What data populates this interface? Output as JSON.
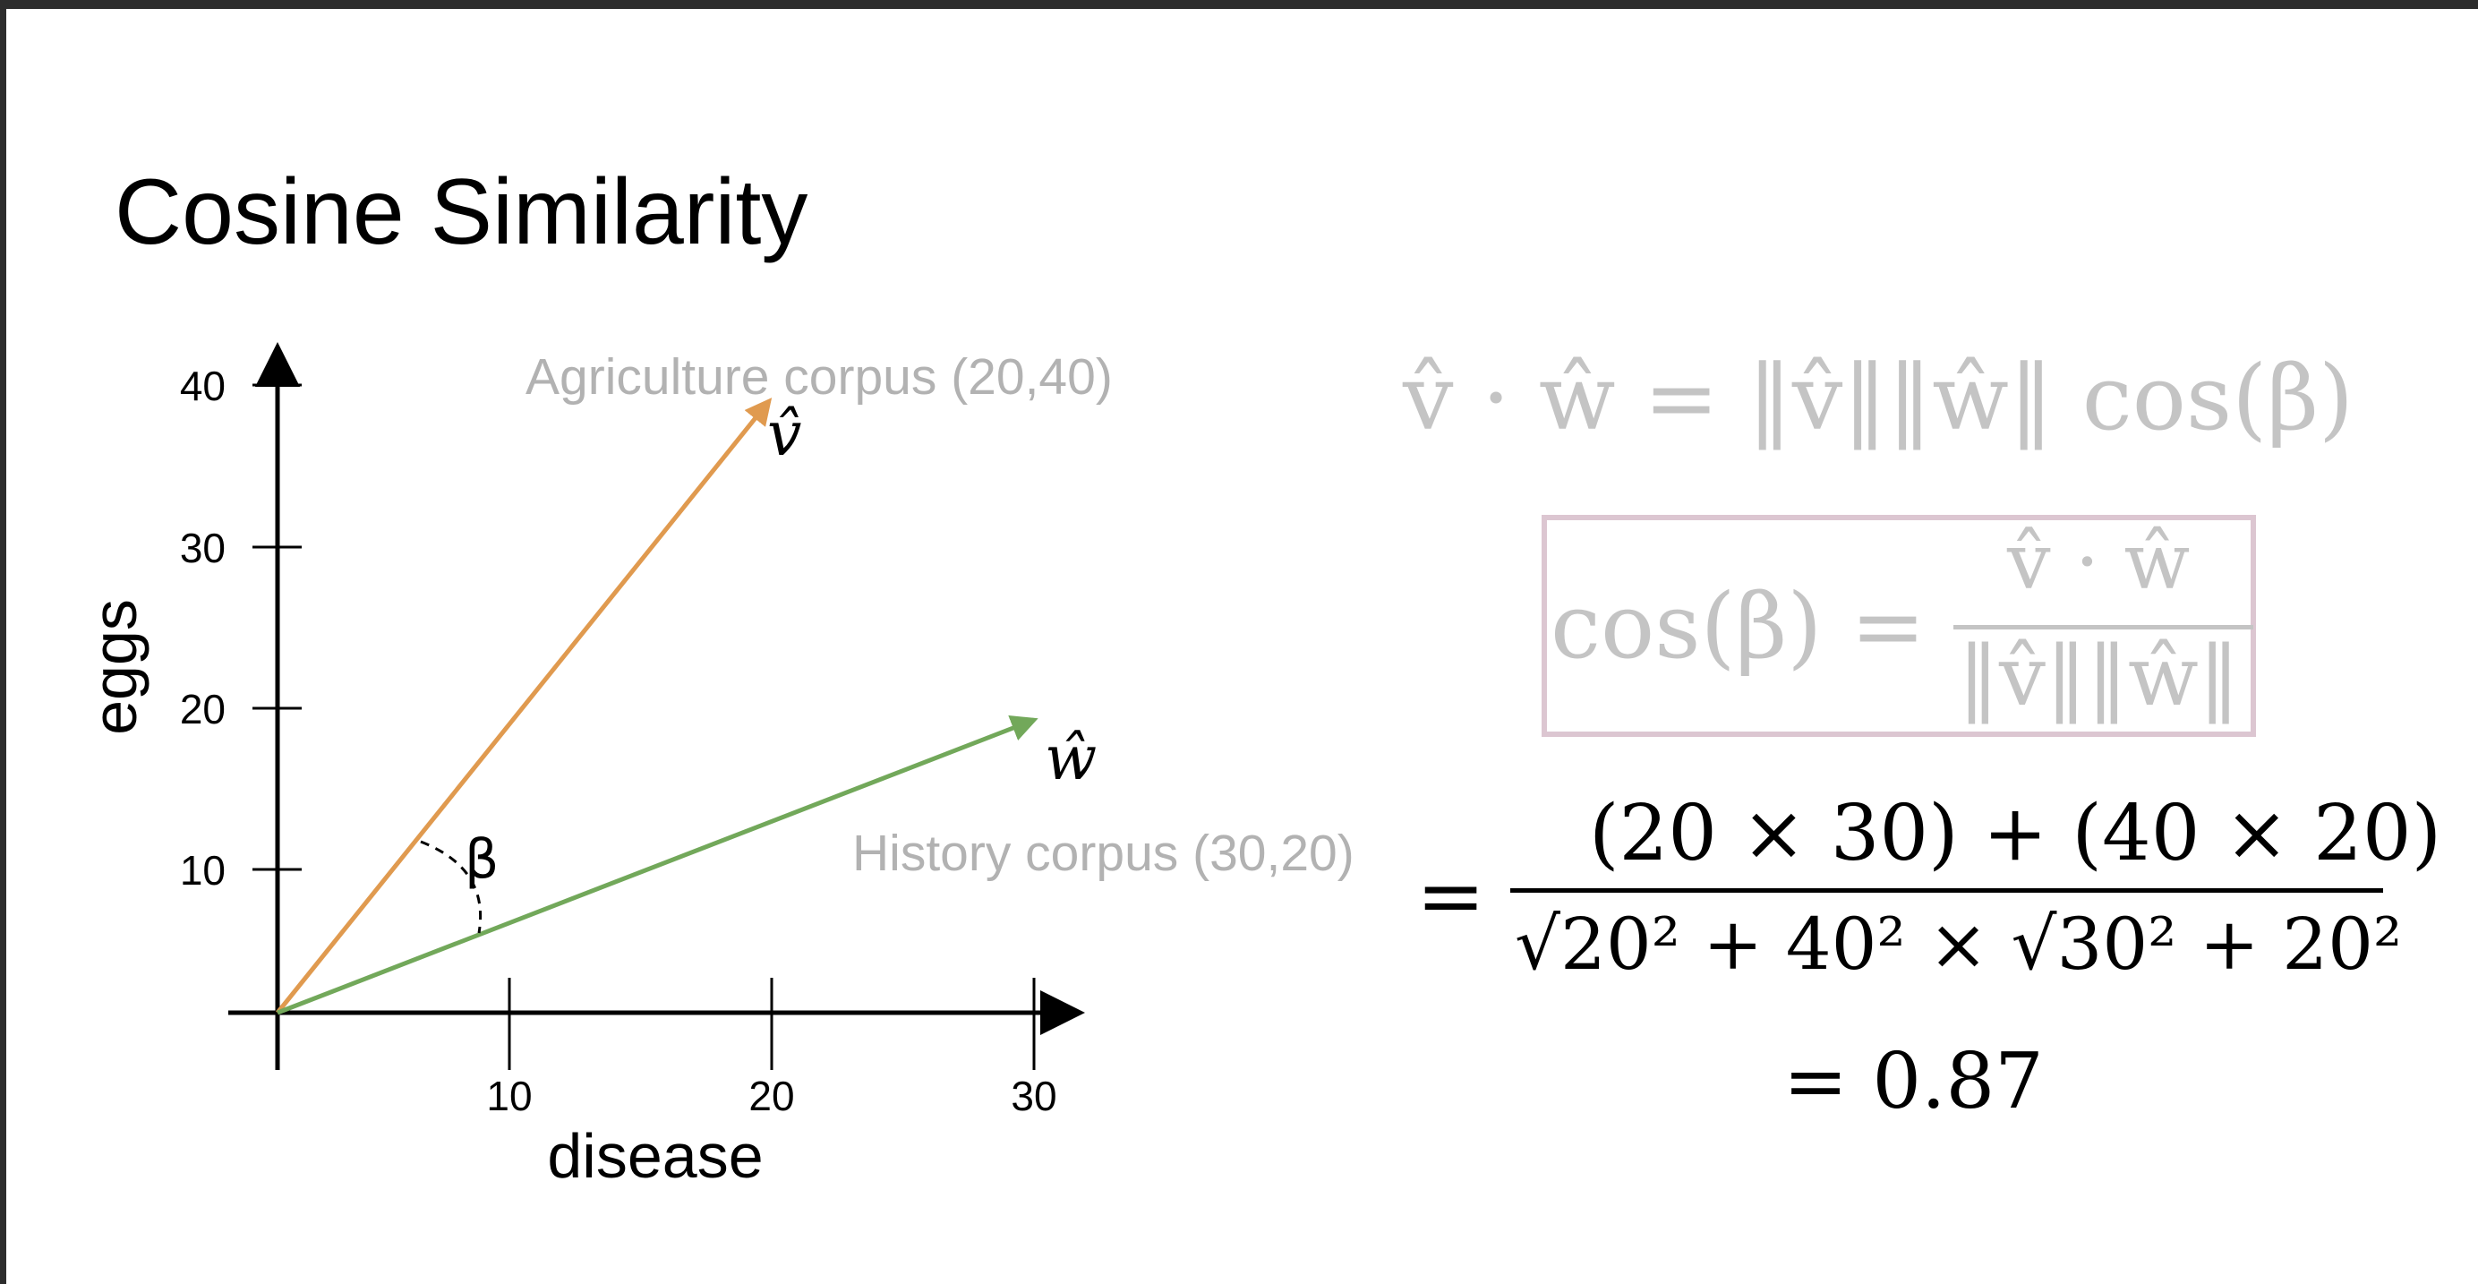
{
  "slide": {
    "title": "Cosine Similarity"
  },
  "chart_data": {
    "type": "vector-plot",
    "xlabel": "disease",
    "ylabel": "eggs",
    "xlim": [
      0,
      30
    ],
    "ylim": [
      0,
      40
    ],
    "x_ticks": [
      10,
      20,
      30
    ],
    "y_ticks": [
      10,
      20,
      30,
      40
    ],
    "series": [
      {
        "name": "Agriculture corpus (20,40)",
        "symbol": "v̂",
        "x": 20,
        "y": 40,
        "color": "#e09a4f"
      },
      {
        "name": "History corpus (30,20)",
        "symbol": "ŵ",
        "x": 30,
        "y": 20,
        "color": "#72a85a"
      }
    ],
    "angle_label": "β"
  },
  "formulas": {
    "dot_product": "v̂ · ŵ = ‖v̂‖‖ŵ‖ cos(β)",
    "cos_lhs": "cos(β) =",
    "cos_num": "v̂ · ŵ",
    "cos_den": "‖v̂‖‖ŵ‖",
    "eq_sign": "=",
    "calc_num": "(20 × 30) + (40 × 20)",
    "calc_den": "√20² + 40² × √30² + 20²",
    "result": "= 0.87"
  }
}
